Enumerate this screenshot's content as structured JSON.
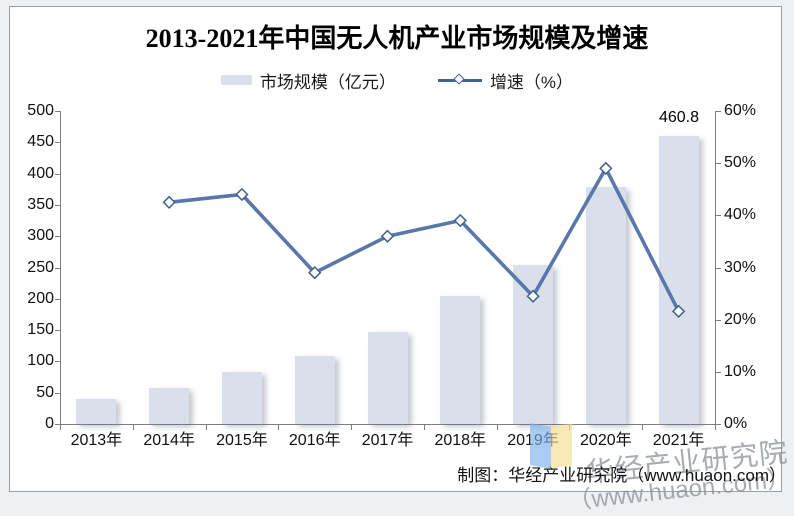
{
  "title": "2013-2021年中国无人机产业市场规模及增速",
  "legend": {
    "bar_label": "市场规模（亿元）",
    "line_label": "增速（%）"
  },
  "footer_credit": "制图：华经产业研究院（www.huaon.com）",
  "watermark": {
    "line1": "华经产业研究院",
    "line2": "（www.huaon.com）"
  },
  "logo_name": "huaon-logo",
  "colors": {
    "bar_fill": "#d9e0ec",
    "line_stroke": "#5a77aa",
    "marker_fill": "#ffffff",
    "marker_stroke": "#41618e",
    "axis": "#7f7f7f",
    "watermark_gray": "#8a8f98",
    "logo_blue": "#7fb0ea",
    "logo_yellow": "#f4de8e"
  },
  "chart_data": {
    "type": "bar",
    "subtype": "bar+line combo, dual axis",
    "title": "2013-2021年中国无人机产业市场规模及增速",
    "categories": [
      "2013年",
      "2014年",
      "2015年",
      "2016年",
      "2017年",
      "2018年",
      "2019年",
      "2020年",
      "2021年"
    ],
    "series": [
      {
        "name": "市场规模（亿元）",
        "type": "bar",
        "axis": "left",
        "values": [
          40,
          58,
          83,
          108,
          147,
          204,
          254,
          379,
          460.8
        ]
      },
      {
        "name": "增速（%）",
        "type": "line",
        "axis": "right",
        "marker": "open-diamond",
        "values": [
          null,
          42.5,
          44,
          29,
          36,
          39,
          24.5,
          49,
          21.6
        ]
      }
    ],
    "data_label": "460.8",
    "data_label_category": "2021年",
    "left_axis": {
      "label": "",
      "min": 0,
      "max": 500,
      "step": 50,
      "ticks": [
        "0",
        "50",
        "100",
        "150",
        "200",
        "250",
        "300",
        "350",
        "400",
        "450",
        "500"
      ]
    },
    "right_axis": {
      "label": "",
      "min": 0,
      "max": 60,
      "step": 10,
      "ticks": [
        "0%",
        "10%",
        "20%",
        "30%",
        "40%",
        "50%",
        "60%"
      ]
    },
    "grid": false,
    "legend_position": "top-center"
  }
}
